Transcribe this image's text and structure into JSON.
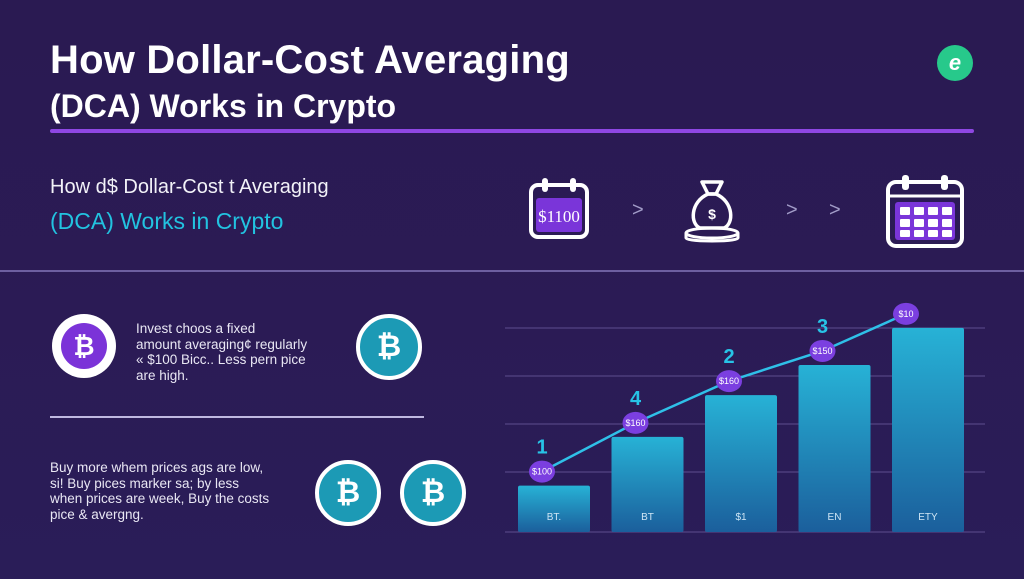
{
  "header": {
    "title_line1": "How Dollar-Cost  Averaging",
    "title_line2": "(DCA)  Works in Crypto",
    "logo_letter": "e"
  },
  "subheading": {
    "line1": "How d$ Dollar-Cost t Averaging",
    "line2": "(DCA)  Works in Crypto"
  },
  "process": {
    "calendar_amount": "$1100",
    "bag_symbol": "$",
    "arrows": [
      ">",
      ">",
      ">"
    ]
  },
  "row1": {
    "lines": [
      "Invest choos a fixed",
      "amount averaging¢ regularly",
      "« $100 Bicc.. Less pern pice",
      "are high."
    ]
  },
  "row2": {
    "lines": [
      "Buy more whem prices ags are low,",
      "si! Buy pices marker sa; by less",
      "when prices are week, Buy the costs",
      "pice & avergng."
    ]
  },
  "chart_data": {
    "type": "bar",
    "categories": [
      "BT.",
      "BT",
      "$1",
      "EN",
      "ETY"
    ],
    "values": [
      1.0,
      2.05,
      2.95,
      3.6,
      4.4
    ],
    "step_numbers": [
      "1",
      "4",
      "2",
      "3",
      ""
    ],
    "price_tags": [
      "$100",
      "$160",
      "$160",
      "$150",
      "$10"
    ],
    "colors": {
      "bar_top": "#27b2d6",
      "bar_bottom": "#1b5f9c",
      "line": "#2fc0e8",
      "tag": "#7b3fe0"
    }
  },
  "colors": {
    "background": "#2a1a52",
    "accent_purple": "#8e47e3",
    "accent_teal": "#22c3e0",
    "logo_green": "#27c98b"
  },
  "icons": [
    "calendar-dollar-icon",
    "money-bag-icon",
    "calendar-grid-icon",
    "bitcoin-icon"
  ]
}
